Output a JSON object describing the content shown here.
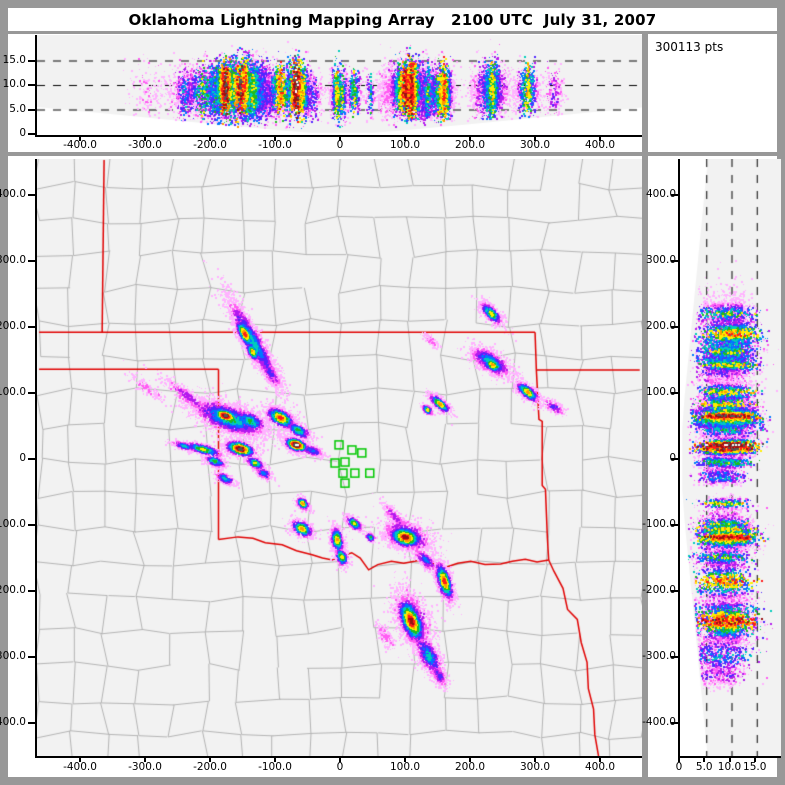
{
  "window": {
    "title": "Oklahoma Lightning Mapping Array   2100 UTC  July 31, 2007",
    "points_label": "300113 pts"
  },
  "colors": {
    "frame": "#989898",
    "panel_bg": "#ffffff",
    "plot_bg": "#f2f2f2",
    "county_line": "#b3b3b3",
    "state_border": "#e00000",
    "station": "#00c800",
    "axis": "#000000",
    "palette": [
      "#ffb3ff",
      "#ff5cf2",
      "#b31aee",
      "#5026ff",
      "#0077ff",
      "#00ccbb",
      "#1fbb1f",
      "#ffee00",
      "#ff9900",
      "#ff1a1a",
      "#991111",
      "#555555",
      "#ffffff"
    ]
  },
  "chart_data": {
    "type": "scatter",
    "title": "Oklahoma Lightning Mapping Array   2100 UTC  July 31, 2007",
    "total_points_label": "300113 pts",
    "panels": {
      "top": {
        "xlabel_km_east": [
          -400,
          -300,
          -200,
          -100,
          0,
          100,
          200,
          300,
          400
        ],
        "ylabel_alt_km": [
          0,
          5,
          10,
          15
        ],
        "x_range": [
          -465,
          465
        ],
        "y_range": [
          0,
          20
        ],
        "dashed_gridlines_alt_km": [
          5,
          10,
          15
        ]
      },
      "map": {
        "x_range": [
          -465,
          465
        ],
        "y_range": [
          -450,
          454
        ],
        "x_ticks": [
          -400,
          -300,
          -200,
          -100,
          0,
          100,
          200,
          300,
          400
        ],
        "y_ticks": [
          400,
          300,
          200,
          100,
          0,
          -100,
          -200,
          -300,
          -400
        ]
      },
      "right": {
        "xlabel_alt_km": [
          0,
          5,
          10,
          15
        ],
        "y_ticks": [
          400,
          300,
          200,
          100,
          0,
          -100,
          -200,
          -300,
          -400
        ],
        "x_range": [
          0,
          20
        ],
        "dashed_gridlines_alt_km": [
          5,
          10,
          15
        ]
      }
    },
    "ew_ticks": [
      {
        "v": -400,
        "l": "-400.0"
      },
      {
        "v": -300,
        "l": "-300.0"
      },
      {
        "v": -200,
        "l": "-200.0"
      },
      {
        "v": -100,
        "l": "-100.0"
      },
      {
        "v": 0,
        "l": "0"
      },
      {
        "v": 100,
        "l": "100.0"
      },
      {
        "v": 200,
        "l": "200.0"
      },
      {
        "v": 300,
        "l": "300.0"
      },
      {
        "v": 400,
        "l": "400.0"
      }
    ],
    "ns_ticks": [
      {
        "v": 400,
        "l": "400.0"
      },
      {
        "v": 300,
        "l": "300.0"
      },
      {
        "v": 200,
        "l": "200.0"
      },
      {
        "v": 100,
        "l": "100.0"
      },
      {
        "v": 0,
        "l": "0"
      },
      {
        "v": -100,
        "l": "-100.0"
      },
      {
        "v": -200,
        "l": "-200.0"
      },
      {
        "v": -300,
        "l": "-300.0"
      },
      {
        "v": -400,
        "l": "-400.0"
      }
    ],
    "alt_ticks": [
      {
        "v": 0,
        "l": "0"
      },
      {
        "v": 5,
        "l": "5.0"
      },
      {
        "v": 10,
        "l": "10.0"
      },
      {
        "v": 15,
        "l": "15.0"
      }
    ],
    "stations_km": [
      [
        -4.6,
        21.4
      ],
      [
        15.3,
        13.7
      ],
      [
        30.5,
        9.2
      ],
      [
        -10.7,
        -6.1
      ],
      [
        4.6,
        -4.6
      ],
      [
        1.5,
        -21.4
      ],
      [
        19.8,
        -21.4
      ],
      [
        42.7,
        -21.4
      ],
      [
        4.6,
        -36.6
      ]
    ],
    "state_borders_km": [
      [
        [
          -366,
          453
        ],
        [
          -369,
          192
        ]
      ],
      [
        [
          -466,
          192
        ],
        [
          297,
          192
        ]
      ],
      [
        [
          -466,
          136
        ],
        [
          -190,
          136
        ]
      ],
      [
        [
          -190,
          136
        ],
        [
          -190,
          -122
        ]
      ],
      [
        [
          -190,
          -122
        ],
        [
          -160,
          -118
        ],
        [
          -137,
          -120
        ],
        [
          -118,
          -127
        ],
        [
          -92,
          -130
        ],
        [
          -70,
          -139
        ],
        [
          -46,
          -145
        ],
        [
          -30,
          -150
        ],
        [
          -15,
          -153
        ],
        [
          0,
          -147
        ],
        [
          15,
          -142
        ],
        [
          28,
          -150
        ],
        [
          41,
          -168
        ],
        [
          55,
          -160
        ],
        [
          76,
          -155
        ],
        [
          95,
          -158
        ],
        [
          122,
          -153
        ],
        [
          140,
          -158
        ],
        [
          160,
          -164
        ],
        [
          178,
          -158
        ],
        [
          198,
          -155
        ],
        [
          220,
          -160
        ],
        [
          244,
          -159
        ],
        [
          262,
          -155
        ],
        [
          282,
          -152
        ],
        [
          300,
          -156
        ],
        [
          318,
          -153
        ]
      ],
      [
        [
          297,
          192
        ],
        [
          299,
          135
        ]
      ],
      [
        [
          299,
          135
        ],
        [
          458,
          135
        ]
      ],
      [
        [
          299,
          135
        ],
        [
          303,
          60
        ],
        [
          308,
          57
        ],
        [
          308,
          -40
        ],
        [
          313,
          -46
        ],
        [
          316,
          -120
        ],
        [
          318,
          -153
        ]
      ],
      [
        [
          318,
          -153
        ],
        [
          326,
          -170
        ],
        [
          340,
          -196
        ],
        [
          347,
          -228
        ],
        [
          362,
          -243
        ],
        [
          368,
          -278
        ],
        [
          377,
          -308
        ],
        [
          379,
          -348
        ],
        [
          387,
          -379
        ],
        [
          389,
          -418
        ],
        [
          395,
          -452
        ]
      ]
    ],
    "storm_cells": [
      {
        "c": [
          -137,
          178
        ],
        "ang": -60,
        "sl": 40,
        "sw": 7,
        "alt": [
          9,
          2.6
        ],
        "p": 5,
        "n": 2200
      },
      {
        "c": [
          -150,
          190
        ],
        "ang": -60,
        "sl": 13,
        "sw": 5,
        "alt": [
          10,
          2.4
        ],
        "p": 9,
        "n": 1100
      },
      {
        "c": [
          -138,
          163
        ],
        "ang": -60,
        "sl": 8,
        "sw": 4,
        "alt": [
          9,
          2.2
        ],
        "p": 8,
        "n": 500
      },
      {
        "c": [
          -110,
          130
        ],
        "ang": -60,
        "sl": 14,
        "sw": 5,
        "alt": [
          8,
          2.2
        ],
        "p": 3,
        "n": 400
      },
      {
        "c": [
          -175,
          62
        ],
        "ang": -20,
        "sl": 30,
        "sw": 11,
        "alt": [
          9,
          2.8
        ],
        "p": 6,
        "n": 2600
      },
      {
        "c": [
          -180,
          66
        ],
        "ang": -20,
        "sl": 11,
        "sw": 5,
        "alt": [
          9.5,
          2.2
        ],
        "p": 11,
        "n": 1500
      },
      {
        "c": [
          -142,
          58
        ],
        "ang": -25,
        "sl": 14,
        "sw": 7,
        "alt": [
          9,
          2.5
        ],
        "p": 6,
        "n": 700
      },
      {
        "c": [
          -235,
          93
        ],
        "ang": -35,
        "sl": 28,
        "sw": 5,
        "alt": [
          9,
          2.5
        ],
        "p": 2,
        "n": 450
      },
      {
        "c": [
          -300,
          107
        ],
        "ang": -35,
        "sl": 18,
        "sw": 4,
        "alt": [
          9,
          2.5
        ],
        "p": 1,
        "n": 150
      },
      {
        "c": [
          -95,
          63
        ],
        "ang": -30,
        "sl": 13,
        "sw": 7,
        "alt": [
          9,
          2.5
        ],
        "p": 9,
        "n": 900
      },
      {
        "c": [
          -68,
          44
        ],
        "ang": -30,
        "sl": 12,
        "sw": 5,
        "alt": [
          8.5,
          2.3
        ],
        "p": 6,
        "n": 450
      },
      {
        "c": [
          -71,
          22
        ],
        "ang": -20,
        "sl": 10,
        "sw": 5,
        "alt": [
          9.5,
          2.5
        ],
        "p": 12,
        "n": 1100
      },
      {
        "c": [
          -47,
          13
        ],
        "ang": -20,
        "sl": 10,
        "sw": 4,
        "alt": [
          8,
          2.2
        ],
        "p": 4,
        "n": 350
      },
      {
        "c": [
          -214,
          15
        ],
        "ang": -15,
        "sl": 17,
        "sw": 4,
        "alt": [
          8.5,
          2.4
        ],
        "p": 7,
        "n": 650
      },
      {
        "c": [
          -243,
          20
        ],
        "ang": -15,
        "sl": 10,
        "sw": 3,
        "alt": [
          8,
          2.2
        ],
        "p": 5,
        "n": 280
      },
      {
        "c": [
          -157,
          16
        ],
        "ang": -15,
        "sl": 13,
        "sw": 6,
        "alt": [
          9,
          2.4
        ],
        "p": 11,
        "n": 950
      },
      {
        "c": [
          -196,
          -3
        ],
        "ang": -20,
        "sl": 9,
        "sw": 4,
        "alt": [
          8,
          2.3
        ],
        "p": 6,
        "n": 380
      },
      {
        "c": [
          -134,
          -6
        ],
        "ang": -30,
        "sl": 8,
        "sw": 4,
        "alt": [
          8.5,
          2.2
        ],
        "p": 7,
        "n": 380
      },
      {
        "c": [
          -121,
          -21
        ],
        "ang": -30,
        "sl": 8,
        "sw": 4,
        "alt": [
          8,
          2.2
        ],
        "p": 4,
        "n": 240
      },
      {
        "c": [
          -181,
          -29
        ],
        "ang": -25,
        "sl": 9,
        "sw": 4,
        "alt": [
          8,
          2.2
        ],
        "p": 5,
        "n": 300
      },
      {
        "c": [
          -61,
          -67
        ],
        "ang": -40,
        "sl": 6,
        "sw": 4,
        "alt": [
          8.5,
          2.2
        ],
        "p": 8,
        "n": 340
      },
      {
        "c": [
          -62,
          -105
        ],
        "ang": -30,
        "sl": 10,
        "sw": 6,
        "alt": [
          8.5,
          2.4
        ],
        "p": 8,
        "n": 600
      },
      {
        "c": [
          -8,
          -122
        ],
        "ang": -80,
        "sl": 11,
        "sw": 5,
        "alt": [
          8.5,
          2.4
        ],
        "p": 8,
        "n": 650
      },
      {
        "c": [
          -1,
          -148
        ],
        "ang": -70,
        "sl": 8,
        "sw": 5,
        "alt": [
          8,
          2.3
        ],
        "p": 7,
        "n": 400
      },
      {
        "c": [
          18,
          -97
        ],
        "ang": -40,
        "sl": 8,
        "sw": 4,
        "alt": [
          8.5,
          2.2
        ],
        "p": 7,
        "n": 380
      },
      {
        "c": [
          43,
          -118
        ],
        "ang": -40,
        "sl": 4,
        "sw": 3,
        "alt": [
          8,
          2.0
        ],
        "p": 6,
        "n": 150
      },
      {
        "c": [
          100,
          -116
        ],
        "ang": -20,
        "sl": 22,
        "sw": 12,
        "alt": [
          9,
          2.8
        ],
        "p": 4,
        "n": 900
      },
      {
        "c": [
          97,
          -118
        ],
        "ang": -15,
        "sl": 14,
        "sw": 8,
        "alt": [
          9.5,
          2.3
        ],
        "p": 10,
        "n": 1600
      },
      {
        "c": [
          80,
          -86
        ],
        "ang": -45,
        "sl": 14,
        "sw": 4,
        "alt": [
          8.5,
          2.2
        ],
        "p": 2,
        "n": 280
      },
      {
        "c": [
          128,
          -152
        ],
        "ang": -45,
        "sl": 12,
        "sw": 5,
        "alt": [
          8,
          2.3
        ],
        "p": 4,
        "n": 380
      },
      {
        "c": [
          157,
          -185
        ],
        "ang": -72,
        "sl": 17,
        "sw": 6,
        "alt": [
          8.5,
          2.5
        ],
        "p": 9,
        "n": 1100
      },
      {
        "c": [
          110,
          -243
        ],
        "ang": -65,
        "sl": 28,
        "sw": 14,
        "alt": [
          8.5,
          3.0
        ],
        "p": 3,
        "n": 850
      },
      {
        "c": [
          106,
          -245
        ],
        "ang": -68,
        "sl": 20,
        "sw": 9,
        "alt": [
          9,
          2.5
        ],
        "p": 10,
        "n": 1800
      },
      {
        "c": [
          133,
          -298
        ],
        "ang": -60,
        "sl": 20,
        "sw": 8,
        "alt": [
          8,
          2.6
        ],
        "p": 5,
        "n": 800
      },
      {
        "c": [
          149,
          -328
        ],
        "ang": -60,
        "sl": 10,
        "sw": 5,
        "alt": [
          7.5,
          2.4
        ],
        "p": 3,
        "n": 300
      },
      {
        "c": [
          66,
          -268
        ],
        "ang": -60,
        "sl": 12,
        "sw": 5,
        "alt": [
          8,
          2.4
        ],
        "p": 1,
        "n": 170
      },
      {
        "c": [
          229,
          221
        ],
        "ang": -45,
        "sl": 12,
        "sw": 5,
        "alt": [
          9,
          2.5
        ],
        "p": 7,
        "n": 600
      },
      {
        "c": [
          228,
          148
        ],
        "ang": -30,
        "sl": 19,
        "sw": 8,
        "alt": [
          9,
          2.6
        ],
        "p": 5,
        "n": 1100
      },
      {
        "c": [
          231,
          143
        ],
        "ang": -30,
        "sl": 9,
        "sw": 5,
        "alt": [
          9.5,
          2.2
        ],
        "p": 8,
        "n": 650
      },
      {
        "c": [
          285,
          102
        ],
        "ang": -40,
        "sl": 12,
        "sw": 5,
        "alt": [
          9,
          2.4
        ],
        "p": 8,
        "n": 700
      },
      {
        "c": [
          150,
          84
        ],
        "ang": -40,
        "sl": 11,
        "sw": 4,
        "alt": [
          8.5,
          2.3
        ],
        "p": 8,
        "n": 600
      },
      {
        "c": [
          131,
          75
        ],
        "ang": -40,
        "sl": 5,
        "sw": 3,
        "alt": [
          8.5,
          2.2
        ],
        "p": 7,
        "n": 220
      },
      {
        "c": [
          326,
          79
        ],
        "ang": -30,
        "sl": 9,
        "sw": 4,
        "alt": [
          9,
          2.4
        ],
        "p": 3,
        "n": 220
      },
      {
        "c": [
          136,
          180
        ],
        "ang": -40,
        "sl": 8,
        "sw": 3,
        "alt": [
          9,
          2.2
        ],
        "p": 1,
        "n": 90
      }
    ]
  }
}
